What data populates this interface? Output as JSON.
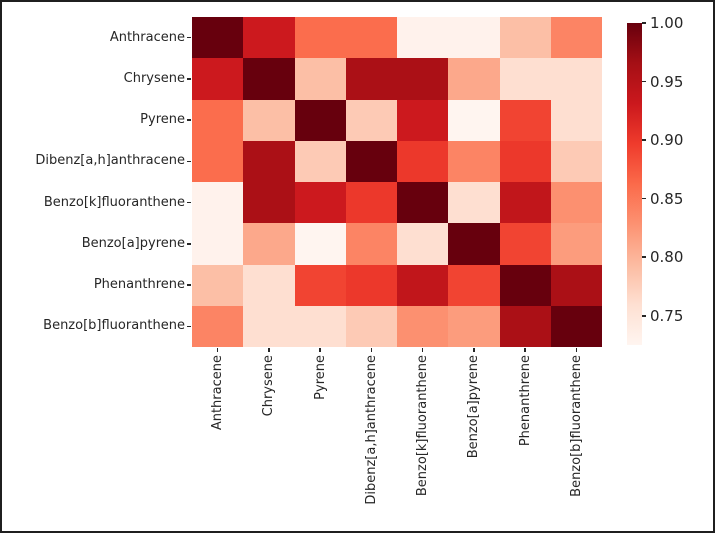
{
  "figure": {
    "background_color": "#ffffff",
    "border_color": "#1f1f1f",
    "tick_label_color": "#262626"
  },
  "chart_data": {
    "type": "heatmap",
    "title": "",
    "xlabel": "",
    "ylabel": "",
    "categories": [
      "Anthracene",
      "Chrysene",
      "Pyrene",
      "Dibenz[a,h]anthracene",
      "Benzo[k]fluoranthene",
      "Benzo[a]pyrene",
      "Phenanthrene",
      "Benzo[b]fluoranthene"
    ],
    "matrix": [
      [
        1.0,
        0.93,
        0.86,
        0.86,
        0.73,
        0.73,
        0.79,
        0.84
      ],
      [
        0.93,
        1.0,
        0.79,
        0.96,
        0.96,
        0.81,
        0.76,
        0.76
      ],
      [
        0.86,
        0.79,
        1.0,
        0.78,
        0.93,
        0.72,
        0.89,
        0.76
      ],
      [
        0.86,
        0.96,
        0.78,
        1.0,
        0.9,
        0.84,
        0.9,
        0.78
      ],
      [
        0.73,
        0.96,
        0.93,
        0.9,
        1.0,
        0.76,
        0.94,
        0.83
      ],
      [
        0.73,
        0.81,
        0.72,
        0.84,
        0.76,
        1.0,
        0.89,
        0.82
      ],
      [
        0.79,
        0.76,
        0.89,
        0.9,
        0.94,
        0.89,
        1.0,
        0.96
      ],
      [
        0.84,
        0.76,
        0.76,
        0.78,
        0.83,
        0.82,
        0.96,
        1.0
      ]
    ],
    "colormap": "Reds",
    "colormap_stops": [
      "#fff5f0",
      "#fee0d2",
      "#fcbba1",
      "#fc9272",
      "#fb6a4a",
      "#ef3b2c",
      "#cb181d",
      "#a50f15",
      "#67000d"
    ],
    "vmin": 0.725,
    "vmax": 1.0,
    "grid": false,
    "colorbar": {
      "position": "right",
      "tick_labels": [
        "1.00",
        "0.95",
        "0.90",
        "0.85",
        "0.80",
        "0.75"
      ],
      "tick_values": [
        1.0,
        0.95,
        0.9,
        0.85,
        0.8,
        0.75
      ]
    }
  }
}
